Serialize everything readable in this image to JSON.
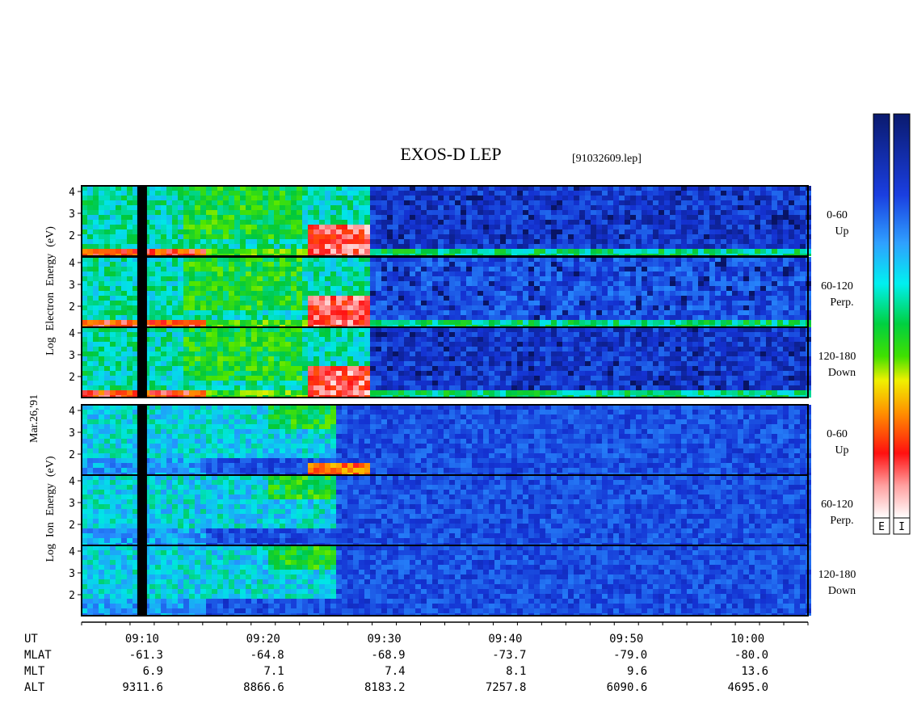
{
  "title": "EXOS-D LEP",
  "file_label": "[91032609.lep]",
  "date_label": "Mar.26,'91",
  "colorbar_labels": [
    "E",
    "I"
  ],
  "chart_data": {
    "type": "heatmap",
    "groups": [
      {
        "name": "electron",
        "ylabel_lines": [
          "Log",
          "Electron",
          "Energy",
          "(eV)"
        ],
        "panels": [
          {
            "angle": "0-60",
            "direction": "Up"
          },
          {
            "angle": "60-120",
            "direction": "Perp."
          },
          {
            "angle": "120-180",
            "direction": "Down"
          }
        ]
      },
      {
        "name": "ion",
        "ylabel_lines": [
          "Log",
          "Ion",
          "Energy",
          "(eV)"
        ],
        "panels": [
          {
            "angle": "0-60",
            "direction": "Up"
          },
          {
            "angle": "60-120",
            "direction": "Perp."
          },
          {
            "angle": "120-180",
            "direction": "Down"
          }
        ]
      }
    ],
    "y_ticks": [
      "4",
      "3",
      "2"
    ],
    "x_range_minutes": [
      "09:05",
      "10:05"
    ],
    "data_gap_ut": "09:10",
    "x_ticks": [
      "09:10",
      "09:20",
      "09:30",
      "09:40",
      "09:50",
      "10:00"
    ],
    "orbit_rows": [
      {
        "name": "UT",
        "values": []
      },
      {
        "name": "MLAT",
        "values": [
          "-61.3",
          "-64.8",
          "-68.9",
          "-73.7",
          "-79.0",
          "-80.0"
        ]
      },
      {
        "name": "MLT",
        "values": [
          "6.9",
          "7.1",
          "7.4",
          "8.1",
          "9.6",
          "13.6"
        ]
      },
      {
        "name": "ALT",
        "values": [
          "9311.6",
          "8866.6",
          "8183.2",
          "7257.8",
          "6090.6",
          "4695.0"
        ]
      }
    ]
  }
}
